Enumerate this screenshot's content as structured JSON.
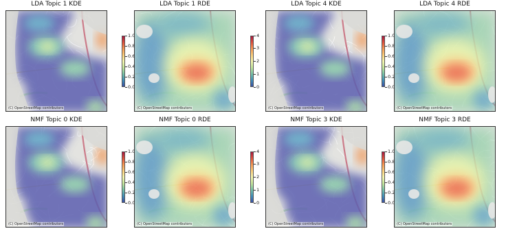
{
  "attribution": "(C) OpenStreetMap contributors",
  "colormap": "Spectral_r",
  "colors": {
    "low": "#3a4fa3",
    "mid": "#f6f7b0",
    "high": "#a8173e"
  },
  "panels": [
    {
      "title": "LDA Topic 1 KDE",
      "kind": "kde",
      "colorbar": {
        "ticks": [
          "1.0",
          "0.8",
          "0.6",
          "0.4",
          "0.2",
          "0.0"
        ],
        "min": 0.0,
        "max": 1.0
      }
    },
    {
      "title": "LDA Topic 1 RDE",
      "kind": "rde",
      "colorbar": {
        "ticks": [
          "4",
          "3",
          "2",
          "1",
          "0"
        ],
        "min": 0,
        "max": 4
      }
    },
    {
      "title": "LDA Topic 4 KDE",
      "kind": "kde",
      "colorbar": {
        "ticks": [
          "1.0",
          "0.8",
          "0.6",
          "0.4",
          "0.2",
          "0.0"
        ],
        "min": 0.0,
        "max": 1.0
      }
    },
    {
      "title": "LDA Topic 4 RDE",
      "kind": "rde",
      "colorbar": {
        "ticks": [],
        "min": null,
        "max": null
      }
    },
    {
      "title": "NMF Topic 0 KDE",
      "kind": "kde",
      "colorbar": {
        "ticks": [
          "1.0",
          "0.8",
          "0.6",
          "0.4",
          "0.2",
          "0.0"
        ],
        "min": 0.0,
        "max": 1.0
      }
    },
    {
      "title": "NMF Topic 0 RDE",
      "kind": "rde",
      "colorbar": {
        "ticks": [
          "4",
          "3",
          "2",
          "1",
          "0"
        ],
        "min": 0,
        "max": 4
      }
    },
    {
      "title": "NMF Topic 3 KDE",
      "kind": "kde",
      "colorbar": {
        "ticks": [
          "1.0",
          "0.8",
          "0.6",
          "0.4",
          "0.2",
          "0.0"
        ],
        "min": 0.0,
        "max": 1.0
      }
    },
    {
      "title": "NMF Topic 3 RDE",
      "kind": "rde",
      "colorbar": {
        "ticks": [],
        "min": null,
        "max": null
      }
    }
  ]
}
